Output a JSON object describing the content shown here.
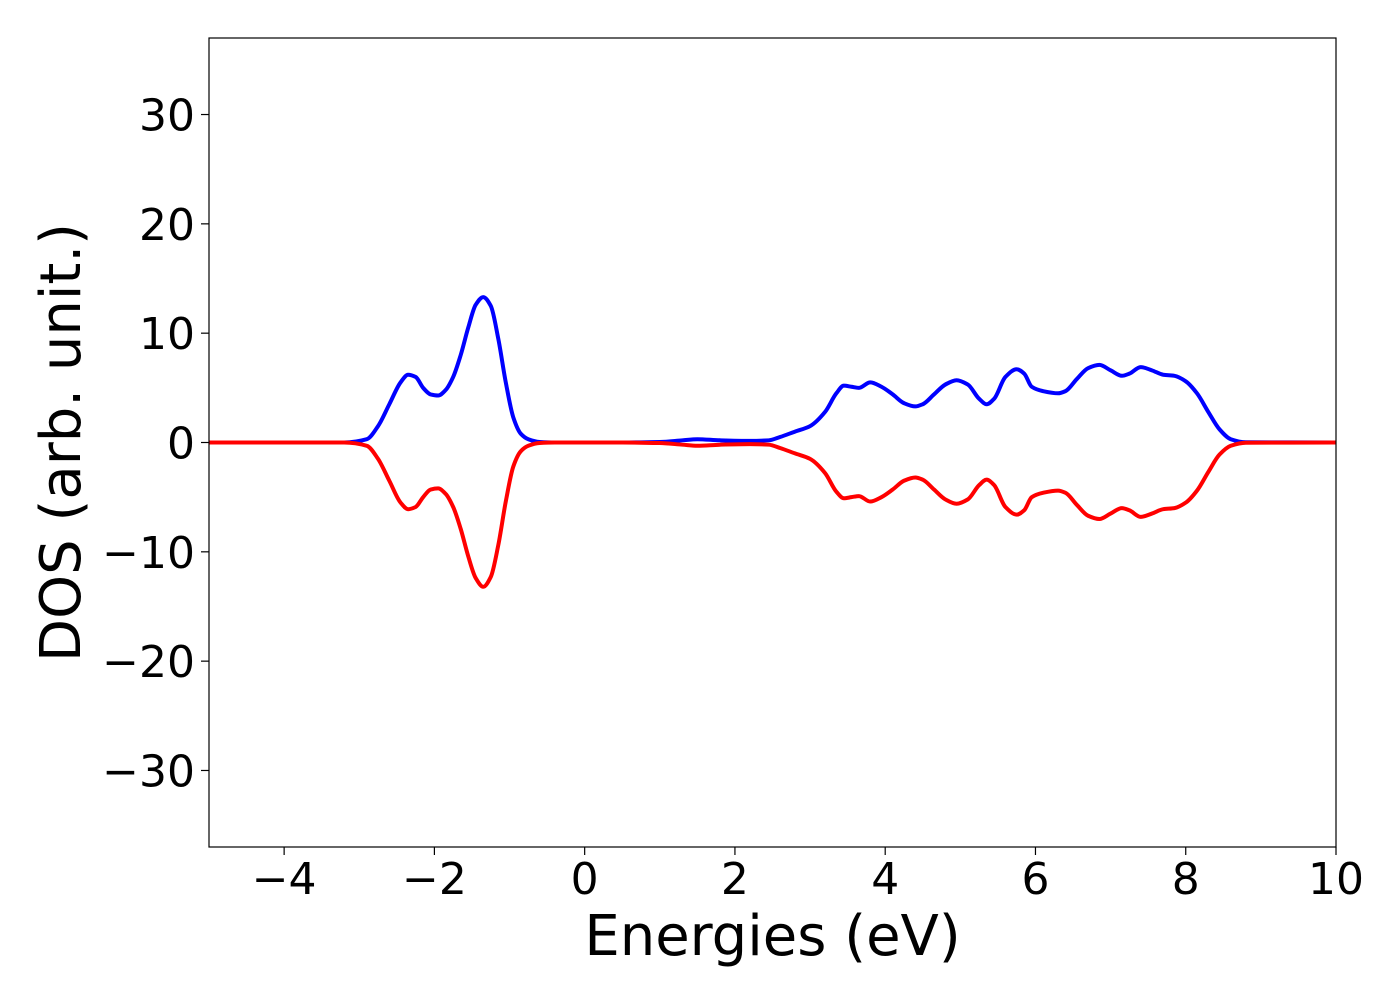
{
  "chart_data": {
    "type": "line",
    "title": "",
    "xlabel": "Energies (eV)",
    "ylabel": "DOS (arb. unit.)",
    "xlim": [
      -5,
      10
    ],
    "ylim": [
      -37,
      37
    ],
    "xticks": [
      -4,
      -2,
      0,
      2,
      4,
      6,
      8,
      10
    ],
    "xtick_labels": [
      "−4",
      "−2",
      "0",
      "2",
      "4",
      "6",
      "8",
      "10"
    ],
    "yticks": [
      30,
      20,
      10,
      0,
      -10,
      -20,
      -30
    ],
    "ytick_labels": [
      "30",
      "20",
      "10",
      "0",
      "−10",
      "−20",
      "−30"
    ],
    "grid": false,
    "legend": "none",
    "series": [
      {
        "color": "#0000ff",
        "x": [
          -5.0,
          -3.2,
          -2.9,
          -2.75,
          -2.6,
          -2.45,
          -2.35,
          -2.25,
          -2.15,
          -2.05,
          -1.95,
          -1.85,
          -1.75,
          -1.65,
          -1.55,
          -1.45,
          -1.35,
          -1.25,
          -1.15,
          -1.05,
          -0.95,
          -0.85,
          -0.75,
          -0.6,
          -0.4,
          0.5,
          1.0,
          1.3,
          1.5,
          1.8,
          2.2,
          2.45,
          2.6,
          2.8,
          3.0,
          3.2,
          3.35,
          3.45,
          3.55,
          3.65,
          3.8,
          3.95,
          4.1,
          4.25,
          4.4,
          4.5,
          4.65,
          4.8,
          4.95,
          5.1,
          5.25,
          5.35,
          5.45,
          5.6,
          5.75,
          5.85,
          5.95,
          6.1,
          6.3,
          6.4,
          6.55,
          6.7,
          6.85,
          7.0,
          7.15,
          7.25,
          7.4,
          7.55,
          7.7,
          7.85,
          8.0,
          8.15,
          8.3,
          8.45,
          8.6,
          8.8,
          10.0
        ],
        "y": [
          0.0,
          0.0,
          0.3,
          1.5,
          3.5,
          5.5,
          6.2,
          6.0,
          5.0,
          4.4,
          4.3,
          4.8,
          6.0,
          8.0,
          10.5,
          12.6,
          13.3,
          12.5,
          9.5,
          5.5,
          2.3,
          0.8,
          0.3,
          0.05,
          0.0,
          0.0,
          0.05,
          0.2,
          0.3,
          0.2,
          0.15,
          0.2,
          0.5,
          1.0,
          1.5,
          2.8,
          4.5,
          5.2,
          5.1,
          5.0,
          5.5,
          5.1,
          4.4,
          3.6,
          3.3,
          3.5,
          4.4,
          5.3,
          5.7,
          5.3,
          4.0,
          3.5,
          4.0,
          6.0,
          6.7,
          6.3,
          5.1,
          4.7,
          4.5,
          4.7,
          5.8,
          6.8,
          7.1,
          6.6,
          6.1,
          6.3,
          6.9,
          6.6,
          6.2,
          6.1,
          5.6,
          4.5,
          2.8,
          1.2,
          0.3,
          0.02,
          0.0
        ]
      },
      {
        "color": "#ff0000",
        "x": [
          -5.0,
          -3.2,
          -2.9,
          -2.75,
          -2.6,
          -2.45,
          -2.35,
          -2.25,
          -2.15,
          -2.05,
          -1.95,
          -1.85,
          -1.75,
          -1.65,
          -1.55,
          -1.45,
          -1.35,
          -1.25,
          -1.15,
          -1.05,
          -0.95,
          -0.85,
          -0.75,
          -0.6,
          -0.4,
          0.5,
          1.0,
          1.3,
          1.5,
          1.8,
          2.2,
          2.45,
          2.6,
          2.8,
          3.0,
          3.2,
          3.35,
          3.45,
          3.55,
          3.65,
          3.8,
          3.95,
          4.1,
          4.25,
          4.4,
          4.5,
          4.65,
          4.8,
          4.95,
          5.1,
          5.25,
          5.35,
          5.45,
          5.6,
          5.75,
          5.85,
          5.95,
          6.1,
          6.3,
          6.4,
          6.55,
          6.7,
          6.85,
          7.0,
          7.15,
          7.25,
          7.4,
          7.55,
          7.7,
          7.85,
          8.0,
          8.15,
          8.3,
          8.45,
          8.6,
          8.8,
          10.0
        ],
        "y": [
          0.0,
          0.0,
          -0.3,
          -1.5,
          -3.5,
          -5.5,
          -6.1,
          -5.9,
          -5.0,
          -4.3,
          -4.2,
          -4.7,
          -5.9,
          -7.9,
          -10.4,
          -12.4,
          -13.2,
          -12.3,
          -9.4,
          -5.4,
          -2.2,
          -0.8,
          -0.3,
          -0.05,
          0.0,
          0.0,
          -0.05,
          -0.2,
          -0.3,
          -0.2,
          -0.15,
          -0.2,
          -0.5,
          -1.0,
          -1.5,
          -2.8,
          -4.5,
          -5.1,
          -5.0,
          -4.9,
          -5.4,
          -5.0,
          -4.3,
          -3.5,
          -3.2,
          -3.4,
          -4.3,
          -5.2,
          -5.6,
          -5.2,
          -3.9,
          -3.4,
          -3.9,
          -5.9,
          -6.6,
          -6.2,
          -5.0,
          -4.6,
          -4.4,
          -4.6,
          -5.7,
          -6.7,
          -7.0,
          -6.5,
          -6.0,
          -6.2,
          -6.8,
          -6.5,
          -6.1,
          -6.0,
          -5.5,
          -4.4,
          -2.7,
          -1.1,
          -0.3,
          -0.02,
          0.0
        ]
      }
    ]
  }
}
